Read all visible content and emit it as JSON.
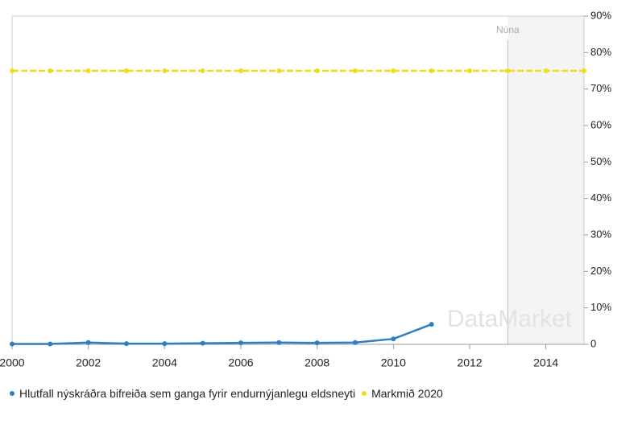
{
  "chart_data": {
    "type": "line",
    "x": [
      2000,
      2001,
      2002,
      2003,
      2004,
      2005,
      2006,
      2007,
      2008,
      2009,
      2010,
      2011,
      2012,
      2013,
      2014,
      2015
    ],
    "series": [
      {
        "name": "Hlutfall nýskráðra bifreiða sem ganga fyrir endurnýjanlegu eldsneyti",
        "color": "#2f7ec1",
        "values": [
          0.1,
          0.1,
          0.5,
          0.2,
          0.2,
          0.3,
          0.4,
          0.5,
          0.4,
          0.5,
          1.5,
          5.5,
          null,
          null,
          null,
          null
        ]
      },
      {
        "name": "Markmið 2020",
        "color": "#f0dc1e",
        "values": [
          75,
          75,
          75,
          75,
          75,
          75,
          75,
          75,
          75,
          75,
          75,
          75,
          75,
          75,
          75,
          75
        ]
      }
    ],
    "xlim": [
      2000,
      2015
    ],
    "xticks": [
      2000,
      2002,
      2004,
      2006,
      2008,
      2010,
      2012,
      2014
    ],
    "ylim": [
      0,
      90
    ],
    "yticks": [
      0,
      {
        "value": 10,
        "label": "10%"
      },
      {
        "value": 20,
        "label": "20%"
      },
      {
        "value": 30,
        "label": "30%"
      },
      {
        "value": 40,
        "label": "40%"
      },
      {
        "value": 50,
        "label": "50%"
      },
      {
        "value": 60,
        "label": "60%"
      },
      {
        "value": 70,
        "label": "70%"
      },
      {
        "value": 80,
        "label": "80%"
      },
      {
        "value": 90,
        "label": "90%"
      }
    ],
    "now_marker": {
      "x": 2013,
      "label": "Núna"
    },
    "watermark": "DataMarket",
    "legend": "bottom"
  }
}
